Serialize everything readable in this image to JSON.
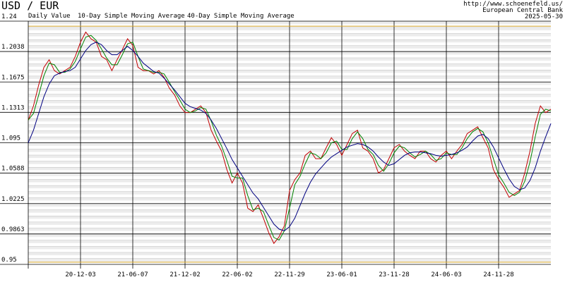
{
  "chart_data": {
    "type": "line",
    "title": "USD / EUR",
    "annotations": [
      "http://www.schoenefeld.us/",
      "European Central Bank",
      "2025-05-30"
    ],
    "categories": [
      null,
      null,
      null,
      null,
      null,
      null,
      null,
      null,
      null,
      null,
      "20-12-03",
      null,
      null,
      null,
      null,
      null,
      null,
      null,
      null,
      null,
      "21-06-07",
      null,
      null,
      null,
      null,
      null,
      null,
      null,
      null,
      null,
      "21-12-02",
      null,
      null,
      null,
      null,
      null,
      null,
      null,
      null,
      null,
      "22-06-02",
      null,
      null,
      null,
      null,
      null,
      null,
      null,
      null,
      null,
      "22-11-29",
      null,
      null,
      null,
      null,
      null,
      null,
      null,
      null,
      null,
      "23-06-01",
      null,
      null,
      null,
      null,
      null,
      null,
      null,
      null,
      null,
      "23-11-28",
      null,
      null,
      null,
      null,
      null,
      null,
      null,
      null,
      null,
      "24-06-03",
      null,
      null,
      null,
      null,
      null,
      null,
      null,
      null,
      null,
      "24-11-28",
      null,
      null,
      null,
      null,
      null,
      null,
      null,
      null,
      null,
      null
    ],
    "series": [
      {
        "name": "Daily Value",
        "color": "#c00000",
        "values": [
          1.122,
          1.139,
          1.164,
          1.185,
          1.194,
          1.181,
          1.177,
          1.181,
          1.185,
          1.198,
          1.215,
          1.227,
          1.219,
          1.215,
          1.198,
          1.194,
          1.181,
          1.194,
          1.206,
          1.219,
          1.211,
          1.185,
          1.181,
          1.181,
          1.177,
          1.181,
          1.173,
          1.16,
          1.152,
          1.139,
          1.131,
          1.131,
          1.135,
          1.139,
          1.131,
          1.11,
          1.097,
          1.085,
          1.063,
          1.047,
          1.059,
          1.047,
          1.017,
          1.013,
          1.021,
          1.005,
          0.988,
          0.975,
          0.983,
          0.996,
          1.038,
          1.051,
          1.059,
          1.08,
          1.085,
          1.076,
          1.076,
          1.089,
          1.101,
          1.093,
          1.08,
          1.093,
          1.106,
          1.11,
          1.089,
          1.085,
          1.076,
          1.059,
          1.063,
          1.076,
          1.089,
          1.093,
          1.085,
          1.08,
          1.076,
          1.085,
          1.085,
          1.076,
          1.072,
          1.08,
          1.085,
          1.076,
          1.085,
          1.093,
          1.106,
          1.11,
          1.114,
          1.101,
          1.089,
          1.063,
          1.051,
          1.042,
          1.03,
          1.034,
          1.038,
          1.059,
          1.085,
          1.118,
          1.139,
          1.131,
          1.135
        ]
      },
      {
        "name": "10-Day Simple Moving Average",
        "color": "#008000",
        "values": [
          1.122,
          1.13,
          1.152,
          1.175,
          1.19,
          1.188,
          1.179,
          1.179,
          1.183,
          1.192,
          1.207,
          1.221,
          1.223,
          1.217,
          1.207,
          1.196,
          1.188,
          1.188,
          1.2,
          1.213,
          1.215,
          1.198,
          1.183,
          1.181,
          1.179,
          1.179,
          1.177,
          1.167,
          1.156,
          1.146,
          1.135,
          1.131,
          1.133,
          1.137,
          1.135,
          1.121,
          1.104,
          1.091,
          1.074,
          1.055,
          1.053,
          1.053,
          1.032,
          1.015,
          1.017,
          1.013,
          0.997,
          0.982,
          0.979,
          0.99,
          1.017,
          1.045,
          1.055,
          1.07,
          1.083,
          1.081,
          1.076,
          1.083,
          1.095,
          1.097,
          1.087,
          1.087,
          1.1,
          1.108,
          1.1,
          1.087,
          1.081,
          1.068,
          1.061,
          1.07,
          1.083,
          1.091,
          1.089,
          1.083,
          1.078,
          1.081,
          1.085,
          1.081,
          1.074,
          1.076,
          1.083,
          1.081,
          1.081,
          1.089,
          1.1,
          1.108,
          1.112,
          1.108,
          1.095,
          1.076,
          1.057,
          1.047,
          1.036,
          1.032,
          1.036,
          1.049,
          1.072,
          1.102,
          1.129,
          1.135,
          1.133
        ]
      },
      {
        "name": "40-Day Simple Moving Average",
        "color": "#000080",
        "values": [
          1.095,
          1.11,
          1.13,
          1.15,
          1.165,
          1.175,
          1.178,
          1.18,
          1.181,
          1.185,
          1.195,
          1.205,
          1.212,
          1.215,
          1.212,
          1.205,
          1.2,
          1.2,
          1.205,
          1.21,
          1.205,
          1.198,
          1.19,
          1.185,
          1.18,
          1.178,
          1.172,
          1.165,
          1.158,
          1.15,
          1.142,
          1.138,
          1.136,
          1.134,
          1.13,
          1.122,
          1.112,
          1.1,
          1.088,
          1.075,
          1.065,
          1.055,
          1.045,
          1.035,
          1.028,
          1.018,
          1.008,
          0.998,
          0.992,
          0.99,
          0.995,
          1.005,
          1.02,
          1.035,
          1.048,
          1.058,
          1.065,
          1.072,
          1.078,
          1.082,
          1.086,
          1.09,
          1.092,
          1.094,
          1.093,
          1.09,
          1.085,
          1.078,
          1.072,
          1.068,
          1.07,
          1.075,
          1.08,
          1.083,
          1.084,
          1.084,
          1.083,
          1.082,
          1.08,
          1.079,
          1.08,
          1.081,
          1.083,
          1.086,
          1.09,
          1.097,
          1.103,
          1.105,
          1.1,
          1.09,
          1.077,
          1.064,
          1.052,
          1.043,
          1.039,
          1.041,
          1.05,
          1.065,
          1.085,
          1.102,
          1.118
        ]
      }
    ],
    "reference_lines": [
      1.234,
      0.9526
    ],
    "reference_color": "#d4a020",
    "ylim": [
      0.95,
      1.24
    ],
    "yticks": [
      1.24,
      1.2038,
      1.1675,
      1.1313,
      1.095,
      1.0588,
      1.0225,
      0.9863,
      0.95
    ],
    "grid": true
  }
}
